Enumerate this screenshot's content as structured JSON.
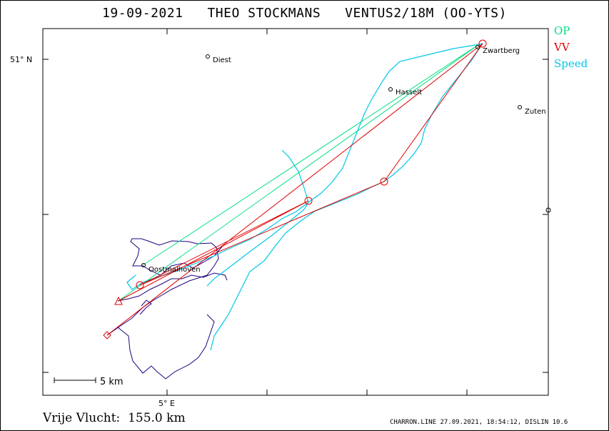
{
  "title": "19-09-2021   THEO STOCKMANS   VENTUS2/18M (OO-YTS)",
  "legend": [
    {
      "label": "OP",
      "color": "#00e080"
    },
    {
      "label": "VV",
      "color": "#e00000"
    },
    {
      "label": "Speed",
      "color": "#00c8e8"
    }
  ],
  "axes": {
    "lat_label": "51° N",
    "lon_label": "5° E"
  },
  "scale_bar_label": "5 km",
  "places": {
    "diest": "Diest",
    "zwartberg": "Zwartberg",
    "hasselt": "Hasselt",
    "zutendaal": "Zuten",
    "oostmalle": "Oostmalhoven"
  },
  "footer": {
    "distance": "Vrije Vlucht:  155.0 km",
    "meta": "CHARRON.LINE 27.09.2021, 18:54:12, DISLIN 10.6"
  },
  "colors": {
    "op_line": "#00e080",
    "vv_line": "#e00000",
    "speed_track": "#00c8e8",
    "track": "#200080"
  }
}
